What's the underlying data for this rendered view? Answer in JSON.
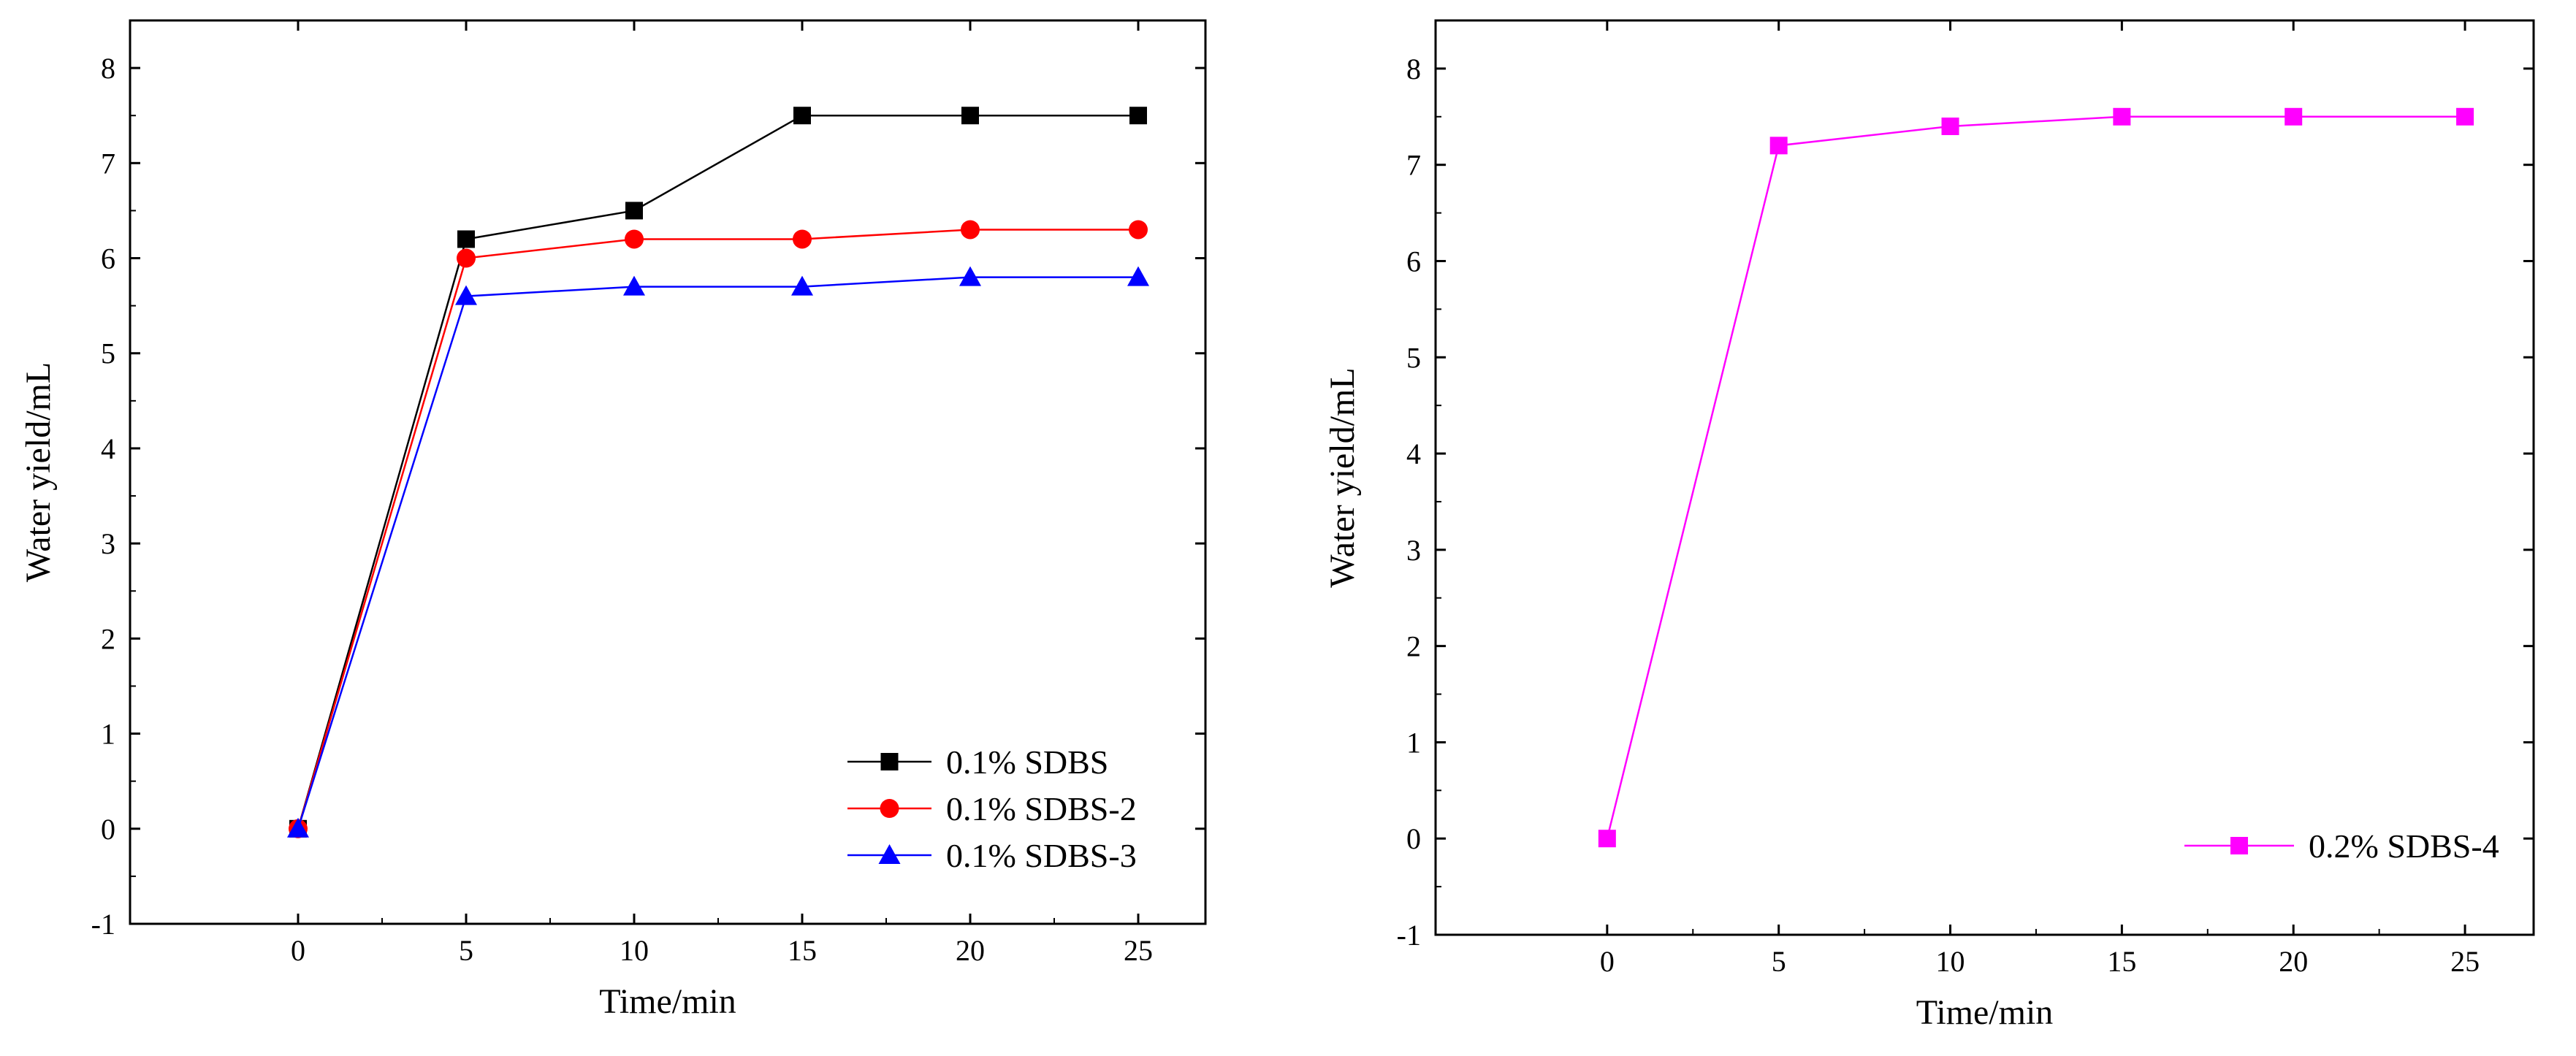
{
  "chart_data": [
    {
      "type": "line",
      "xlabel": "Time/min",
      "ylabel": "Water yield/mL",
      "xlim": [
        -5,
        27
      ],
      "ylim": [
        -1,
        8.5
      ],
      "x_ticks": [
        0,
        5,
        10,
        15,
        20,
        25
      ],
      "y_ticks": [
        -1,
        0,
        1,
        2,
        3,
        4,
        5,
        6,
        7,
        8
      ],
      "grid": false,
      "legend_position": "bottom-right",
      "x": [
        0,
        5,
        10,
        15,
        20,
        25
      ],
      "series": [
        {
          "name": "0.1% SDBS",
          "color": "#000000",
          "marker": "square",
          "values": [
            0,
            6.2,
            6.5,
            7.5,
            7.5,
            7.5
          ]
        },
        {
          "name": "0.1% SDBS-2",
          "color": "#ff0000",
          "marker": "circle",
          "values": [
            0,
            6.0,
            6.2,
            6.2,
            6.3,
            6.3
          ]
        },
        {
          "name": "0.1% SDBS-3",
          "color": "#0000ff",
          "marker": "triangle",
          "values": [
            0,
            5.6,
            5.7,
            5.7,
            5.8,
            5.8
          ]
        }
      ]
    },
    {
      "type": "line",
      "xlabel": "Time/min",
      "ylabel": "Water yield/mL",
      "xlim": [
        -5,
        27
      ],
      "ylim": [
        -1,
        8.5
      ],
      "x_ticks": [
        0,
        5,
        10,
        15,
        20,
        25
      ],
      "y_ticks": [
        -1,
        0,
        1,
        2,
        3,
        4,
        5,
        6,
        7,
        8
      ],
      "grid": false,
      "legend_position": "bottom-right",
      "x": [
        0,
        5,
        10,
        15,
        20,
        25
      ],
      "series": [
        {
          "name": "0.2% SDBS-4",
          "color": "#ff00ff",
          "marker": "square",
          "values": [
            0,
            7.2,
            7.4,
            7.5,
            7.5,
            7.5
          ]
        }
      ]
    }
  ]
}
